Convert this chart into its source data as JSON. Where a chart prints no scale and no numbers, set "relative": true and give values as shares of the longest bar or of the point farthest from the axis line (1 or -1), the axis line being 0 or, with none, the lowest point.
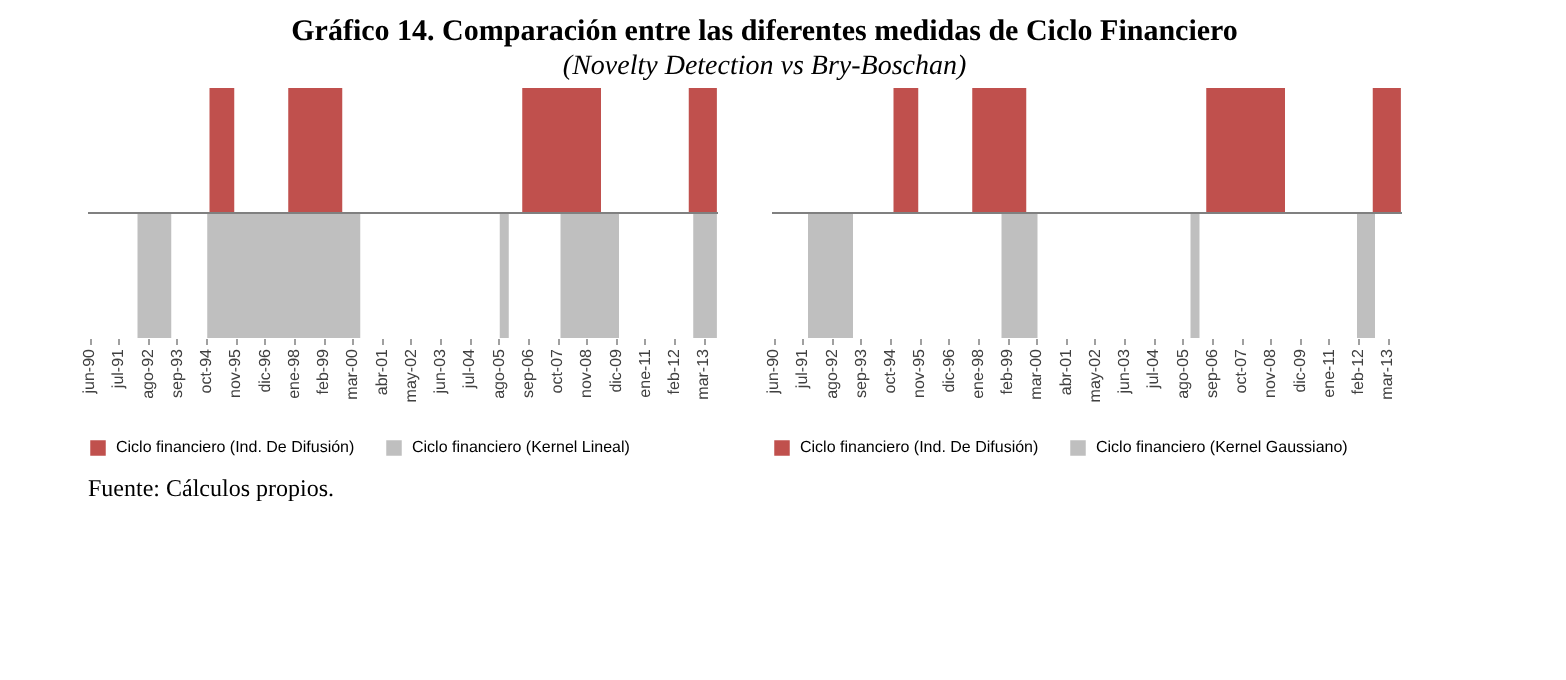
{
  "chart_data": [
    {
      "type": "area",
      "title": "Gráfico 14. Comparación entre las diferentes medidas de Ciclo Financiero",
      "subtitle": "(Novelty Detection vs Bry-Boschan)",
      "annotations": [
        "Fuente: Cálculos propios."
      ],
      "relative": true,
      "legend": "bottom",
      "categories": [
        "jun-90",
        null,
        null,
        null,
        null,
        null,
        null,
        null,
        null,
        null,
        null,
        null,
        null,
        "jul-91",
        null,
        null,
        null,
        null,
        null,
        null,
        null,
        null,
        null,
        null,
        null,
        null,
        "ago-92",
        null,
        null,
        null,
        null,
        null,
        null,
        null,
        null,
        null,
        null,
        null,
        null,
        "sep-93",
        null,
        null,
        null,
        null,
        null,
        null,
        null,
        null,
        null,
        null,
        null,
        null,
        "oct-94",
        null,
        null,
        null,
        null,
        null,
        null,
        null,
        null,
        null,
        null,
        null,
        null,
        "nov-95",
        null,
        null,
        null,
        null,
        null,
        null,
        null,
        null,
        null,
        null,
        null,
        null,
        "dic-96",
        null,
        null,
        null,
        null,
        null,
        null,
        null,
        null,
        null,
        null,
        null,
        null,
        "ene-98",
        null,
        null,
        null,
        null,
        null,
        null,
        null,
        null,
        null,
        null,
        null,
        null,
        "feb-99",
        null,
        null,
        null,
        null,
        null,
        null,
        null,
        null,
        null,
        null,
        null,
        null,
        "mar-00",
        null,
        null,
        null,
        null,
        null,
        null,
        null,
        null,
        null,
        null,
        null,
        null,
        "abr-01",
        null,
        null,
        null,
        null,
        null,
        null,
        null,
        null,
        null,
        null,
        null,
        null,
        "may-02",
        null,
        null,
        null,
        null,
        null,
        null,
        null,
        null,
        null,
        null,
        null,
        null,
        "jun-03",
        null,
        null,
        null,
        null,
        null,
        null,
        null,
        null,
        null,
        null,
        null,
        null,
        "jul-04",
        null,
        null,
        null,
        null,
        null,
        null,
        null,
        null,
        null,
        null,
        null,
        null,
        "ago-05",
        null,
        null,
        null,
        null,
        null,
        null,
        null,
        null,
        null,
        null,
        null,
        null,
        "sep-06",
        null,
        null,
        null,
        null,
        null,
        null,
        null,
        null,
        null,
        null,
        null,
        null,
        "oct-07",
        null,
        null,
        null,
        null,
        null,
        null,
        null,
        null,
        null,
        null,
        null,
        null,
        "nov-08",
        null,
        null,
        null,
        null,
        null,
        null,
        null,
        null,
        null,
        null,
        null,
        null,
        "dic-09",
        null,
        null,
        null,
        null,
        null,
        null,
        null,
        null,
        null,
        null,
        null,
        null,
        "ene-11",
        null,
        null,
        null,
        null,
        null,
        null,
        null,
        null,
        null,
        null,
        null,
        null,
        "feb-12",
        null,
        null,
        null,
        null,
        null,
        null,
        null,
        null,
        null,
        null,
        null,
        null,
        "mar-13",
        null,
        null,
        null,
        null,
        null,
        null
      ],
      "series": [
        {
          "name": "Ciclo financiero (Ind. De Difusión)",
          "color": "#c0504d",
          "values": [
            0,
            0,
            0,
            0,
            0,
            0,
            0,
            0,
            0,
            0,
            0,
            0,
            0,
            0,
            0,
            0,
            0,
            0,
            0,
            0,
            0,
            0,
            0,
            0,
            0,
            0,
            0,
            0,
            0,
            0,
            0,
            0,
            0,
            0,
            0,
            0,
            0,
            0,
            0,
            0,
            0,
            0,
            0,
            0,
            0,
            0,
            0,
            0,
            0,
            0,
            0,
            0,
            0,
            0,
            1,
            1,
            1,
            1,
            1,
            1,
            1,
            1,
            1,
            1,
            1,
            0,
            0,
            0,
            0,
            0,
            0,
            0,
            0,
            0,
            0,
            0,
            0,
            0,
            0,
            0,
            0,
            0,
            0,
            0,
            0,
            0,
            0,
            0,
            0,
            1,
            1,
            1,
            1,
            1,
            1,
            1,
            1,
            1,
            1,
            1,
            1,
            1,
            1,
            1,
            1,
            1,
            1,
            1,
            1,
            1,
            1,
            1,
            1,
            0,
            0,
            0,
            0,
            0,
            0,
            0,
            0,
            0,
            0,
            0,
            0,
            0,
            0,
            0,
            0,
            0,
            0,
            0,
            0,
            0,
            0,
            0,
            0,
            0,
            0,
            0,
            0,
            0,
            0,
            0,
            0,
            0,
            0,
            0,
            0,
            0,
            0,
            0,
            0,
            0,
            0,
            0,
            0,
            0,
            0,
            0,
            0,
            0,
            0,
            0,
            0,
            0,
            0,
            0,
            0,
            0,
            0,
            0,
            0,
            0,
            0,
            0,
            0,
            0,
            0,
            0,
            0,
            0,
            0,
            0,
            0,
            0,
            0,
            0,
            0,
            0,
            0,
            0,
            0,
            1,
            1,
            1,
            1,
            1,
            1,
            1,
            1,
            1,
            1,
            1,
            1,
            1,
            1,
            1,
            1,
            1,
            1,
            1,
            1,
            1,
            1,
            1,
            1,
            1,
            1,
            1,
            1,
            1,
            1,
            1,
            1,
            1,
            1,
            1,
            0,
            0,
            0,
            0,
            0,
            0,
            0,
            0,
            0,
            0,
            0,
            0,
            0,
            0,
            0,
            0,
            0,
            0,
            0,
            0,
            0,
            0,
            0,
            0,
            0,
            0,
            0,
            0,
            0,
            0,
            0,
            0,
            0,
            0,
            0,
            0,
            0,
            0,
            0,
            1,
            1,
            1,
            1,
            1,
            1,
            1,
            1,
            1,
            1,
            1,
            1,
            1
          ]
        },
        {
          "name": "Ciclo financiero (Kernel Lineal)",
          "color": "#bfbfbf",
          "values": [
            0,
            0,
            0,
            0,
            0,
            0,
            0,
            0,
            0,
            0,
            0,
            0,
            0,
            0,
            0,
            0,
            0,
            0,
            0,
            0,
            0,
            0,
            -1,
            -1,
            -1,
            -1,
            -1,
            -1,
            -1,
            -1,
            -1,
            -1,
            -1,
            -1,
            -1,
            -1,
            -1,
            0,
            0,
            0,
            0,
            0,
            0,
            0,
            0,
            0,
            0,
            0,
            0,
            0,
            0,
            0,
            0,
            -1,
            -1,
            -1,
            -1,
            -1,
            -1,
            -1,
            -1,
            -1,
            -1,
            -1,
            -1,
            -1,
            -1,
            -1,
            -1,
            -1,
            -1,
            -1,
            -1,
            -1,
            -1,
            -1,
            -1,
            -1,
            -1,
            -1,
            -1,
            -1,
            -1,
            -1,
            -1,
            -1,
            -1,
            -1,
            -1,
            -1,
            -1,
            -1,
            -1,
            -1,
            -1,
            -1,
            -1,
            -1,
            -1,
            -1,
            -1,
            -1,
            -1,
            -1,
            -1,
            -1,
            -1,
            -1,
            -1,
            -1,
            -1,
            -1,
            -1,
            -1,
            -1,
            -1,
            -1,
            -1,
            -1,
            -1,
            -1,
            0,
            0,
            0,
            0,
            0,
            0,
            0,
            0,
            0,
            0,
            0,
            0,
            0,
            0,
            0,
            0,
            0,
            0,
            0,
            0,
            0,
            0,
            0,
            0,
            0,
            0,
            0,
            0,
            0,
            0,
            0,
            0,
            0,
            0,
            0,
            0,
            0,
            0,
            0,
            0,
            0,
            0,
            0,
            0,
            0,
            0,
            0,
            0,
            0,
            0,
            0,
            0,
            0,
            0,
            0,
            0,
            0,
            0,
            0,
            0,
            0,
            0,
            -1,
            -1,
            -1,
            -1,
            0,
            0,
            0,
            0,
            0,
            0,
            0,
            0,
            0,
            0,
            0,
            0,
            0,
            0,
            0,
            0,
            0,
            0,
            0,
            0,
            0,
            0,
            0,
            -1,
            -1,
            -1,
            -1,
            -1,
            -1,
            -1,
            -1,
            -1,
            -1,
            -1,
            -1,
            -1,
            -1,
            -1,
            -1,
            -1,
            -1,
            -1,
            -1,
            -1,
            -1,
            -1,
            -1,
            -1,
            -1,
            0,
            0,
            0,
            0,
            0,
            0,
            0,
            0,
            0,
            0,
            0,
            0,
            0,
            0,
            0,
            0,
            0,
            0,
            0,
            0,
            0,
            0,
            0,
            0,
            0,
            0,
            0,
            0,
            0,
            0,
            0,
            0,
            0,
            -1,
            -1,
            -1,
            -1,
            -1,
            -1,
            -1,
            -1,
            -1,
            -1,
            -1
          ]
        }
      ]
    },
    {
      "type": "area",
      "relative": true,
      "legend": "bottom",
      "categories": [
        "jun-90",
        null,
        null,
        null,
        null,
        null,
        null,
        null,
        null,
        null,
        null,
        null,
        null,
        "jul-91",
        null,
        null,
        null,
        null,
        null,
        null,
        null,
        null,
        null,
        null,
        null,
        null,
        "ago-92",
        null,
        null,
        null,
        null,
        null,
        null,
        null,
        null,
        null,
        null,
        null,
        null,
        "sep-93",
        null,
        null,
        null,
        null,
        null,
        null,
        null,
        null,
        null,
        null,
        null,
        null,
        "oct-94",
        null,
        null,
        null,
        null,
        null,
        null,
        null,
        null,
        null,
        null,
        null,
        null,
        "nov-95",
        null,
        null,
        null,
        null,
        null,
        null,
        null,
        null,
        null,
        null,
        null,
        null,
        "dic-96",
        null,
        null,
        null,
        null,
        null,
        null,
        null,
        null,
        null,
        null,
        null,
        null,
        "ene-98",
        null,
        null,
        null,
        null,
        null,
        null,
        null,
        null,
        null,
        null,
        null,
        null,
        "feb-99",
        null,
        null,
        null,
        null,
        null,
        null,
        null,
        null,
        null,
        null,
        null,
        null,
        "mar-00",
        null,
        null,
        null,
        null,
        null,
        null,
        null,
        null,
        null,
        null,
        null,
        null,
        "abr-01",
        null,
        null,
        null,
        null,
        null,
        null,
        null,
        null,
        null,
        null,
        null,
        null,
        "may-02",
        null,
        null,
        null,
        null,
        null,
        null,
        null,
        null,
        null,
        null,
        null,
        null,
        "jun-03",
        null,
        null,
        null,
        null,
        null,
        null,
        null,
        null,
        null,
        null,
        null,
        null,
        "jul-04",
        null,
        null,
        null,
        null,
        null,
        null,
        null,
        null,
        null,
        null,
        null,
        null,
        "ago-05",
        null,
        null,
        null,
        null,
        null,
        null,
        null,
        null,
        null,
        null,
        null,
        null,
        "sep-06",
        null,
        null,
        null,
        null,
        null,
        null,
        null,
        null,
        null,
        null,
        null,
        null,
        "oct-07",
        null,
        null,
        null,
        null,
        null,
        null,
        null,
        null,
        null,
        null,
        null,
        null,
        "nov-08",
        null,
        null,
        null,
        null,
        null,
        null,
        null,
        null,
        null,
        null,
        null,
        null,
        "dic-09",
        null,
        null,
        null,
        null,
        null,
        null,
        null,
        null,
        null,
        null,
        null,
        null,
        "ene-11",
        null,
        null,
        null,
        null,
        null,
        null,
        null,
        null,
        null,
        null,
        null,
        null,
        "feb-12",
        null,
        null,
        null,
        null,
        null,
        null,
        null,
        null,
        null,
        null,
        null,
        null,
        "mar-13",
        null,
        null,
        null,
        null,
        null,
        null
      ],
      "series": [
        {
          "name": "Ciclo financiero (Ind. De Difusión)",
          "color": "#c0504d",
          "values": [
            0,
            0,
            0,
            0,
            0,
            0,
            0,
            0,
            0,
            0,
            0,
            0,
            0,
            0,
            0,
            0,
            0,
            0,
            0,
            0,
            0,
            0,
            0,
            0,
            0,
            0,
            0,
            0,
            0,
            0,
            0,
            0,
            0,
            0,
            0,
            0,
            0,
            0,
            0,
            0,
            0,
            0,
            0,
            0,
            0,
            0,
            0,
            0,
            0,
            0,
            0,
            0,
            0,
            0,
            1,
            1,
            1,
            1,
            1,
            1,
            1,
            1,
            1,
            1,
            1,
            0,
            0,
            0,
            0,
            0,
            0,
            0,
            0,
            0,
            0,
            0,
            0,
            0,
            0,
            0,
            0,
            0,
            0,
            0,
            0,
            0,
            0,
            0,
            0,
            1,
            1,
            1,
            1,
            1,
            1,
            1,
            1,
            1,
            1,
            1,
            1,
            1,
            1,
            1,
            1,
            1,
            1,
            1,
            1,
            1,
            1,
            1,
            1,
            0,
            0,
            0,
            0,
            0,
            0,
            0,
            0,
            0,
            0,
            0,
            0,
            0,
            0,
            0,
            0,
            0,
            0,
            0,
            0,
            0,
            0,
            0,
            0,
            0,
            0,
            0,
            0,
            0,
            0,
            0,
            0,
            0,
            0,
            0,
            0,
            0,
            0,
            0,
            0,
            0,
            0,
            0,
            0,
            0,
            0,
            0,
            0,
            0,
            0,
            0,
            0,
            0,
            0,
            0,
            0,
            0,
            0,
            0,
            0,
            0,
            0,
            0,
            0,
            0,
            0,
            0,
            0,
            0,
            0,
            0,
            0,
            0,
            0,
            0,
            0,
            0,
            0,
            0,
            0,
            1,
            1,
            1,
            1,
            1,
            1,
            1,
            1,
            1,
            1,
            1,
            1,
            1,
            1,
            1,
            1,
            1,
            1,
            1,
            1,
            1,
            1,
            1,
            1,
            1,
            1,
            1,
            1,
            1,
            1,
            1,
            1,
            1,
            1,
            1,
            0,
            0,
            0,
            0,
            0,
            0,
            0,
            0,
            0,
            0,
            0,
            0,
            0,
            0,
            0,
            0,
            0,
            0,
            0,
            0,
            0,
            0,
            0,
            0,
            0,
            0,
            0,
            0,
            0,
            0,
            0,
            0,
            0,
            0,
            0,
            0,
            0,
            0,
            0,
            1,
            1,
            1,
            1,
            1,
            1,
            1,
            1,
            1,
            1,
            1,
            1,
            1
          ]
        },
        {
          "name": "Ciclo financiero (Kernel Gaussiano)",
          "color": "#bfbfbf",
          "values": [
            0,
            0,
            0,
            0,
            0,
            0,
            0,
            0,
            0,
            0,
            0,
            0,
            0,
            0,
            0,
            0,
            -1,
            -1,
            -1,
            -1,
            -1,
            -1,
            -1,
            -1,
            -1,
            -1,
            -1,
            -1,
            -1,
            -1,
            -1,
            -1,
            -1,
            -1,
            -1,
            -1,
            0,
            0,
            0,
            0,
            0,
            0,
            0,
            0,
            0,
            0,
            0,
            0,
            0,
            0,
            0,
            0,
            0,
            0,
            0,
            0,
            0,
            0,
            0,
            0,
            0,
            0,
            0,
            0,
            0,
            0,
            0,
            0,
            0,
            0,
            0,
            0,
            0,
            0,
            0,
            0,
            0,
            0,
            0,
            0,
            0,
            0,
            0,
            0,
            0,
            0,
            0,
            0,
            0,
            0,
            0,
            0,
            0,
            0,
            0,
            0,
            0,
            0,
            0,
            0,
            0,
            0,
            -1,
            -1,
            -1,
            -1,
            -1,
            -1,
            -1,
            -1,
            -1,
            -1,
            -1,
            -1,
            -1,
            -1,
            -1,
            -1,
            0,
            0,
            0,
            0,
            0,
            0,
            0,
            0,
            0,
            0,
            0,
            0,
            0,
            0,
            0,
            0,
            0,
            0,
            0,
            0,
            0,
            0,
            0,
            0,
            0,
            0,
            0,
            0,
            0,
            0,
            0,
            0,
            0,
            0,
            0,
            0,
            0,
            0,
            0,
            0,
            0,
            0,
            0,
            0,
            0,
            0,
            0,
            0,
            0,
            0,
            0,
            0,
            0,
            0,
            0,
            0,
            0,
            0,
            0,
            0,
            0,
            0,
            0,
            0,
            0,
            0,
            0,
            0,
            -1,
            -1,
            -1,
            -1,
            0,
            0,
            0,
            0,
            0,
            0,
            0,
            0,
            0,
            0,
            0,
            0,
            0,
            0,
            0,
            0,
            0,
            0,
            0,
            0,
            0,
            0,
            0,
            0,
            0,
            0,
            0,
            0,
            0,
            0,
            0,
            0,
            0,
            0,
            0,
            0,
            0,
            0,
            0,
            0,
            0,
            0,
            0,
            0,
            0,
            0,
            0,
            0,
            0,
            0,
            0,
            0,
            0,
            0,
            0,
            0,
            0,
            0,
            0,
            0,
            0,
            0,
            0,
            0,
            0,
            0,
            0,
            0,
            0,
            0,
            -1,
            -1,
            -1,
            -1,
            -1,
            -1,
            -1,
            -1,
            0,
            0,
            0,
            0,
            0,
            0,
            0,
            0,
            0,
            0,
            0,
            0
          ]
        }
      ]
    }
  ]
}
